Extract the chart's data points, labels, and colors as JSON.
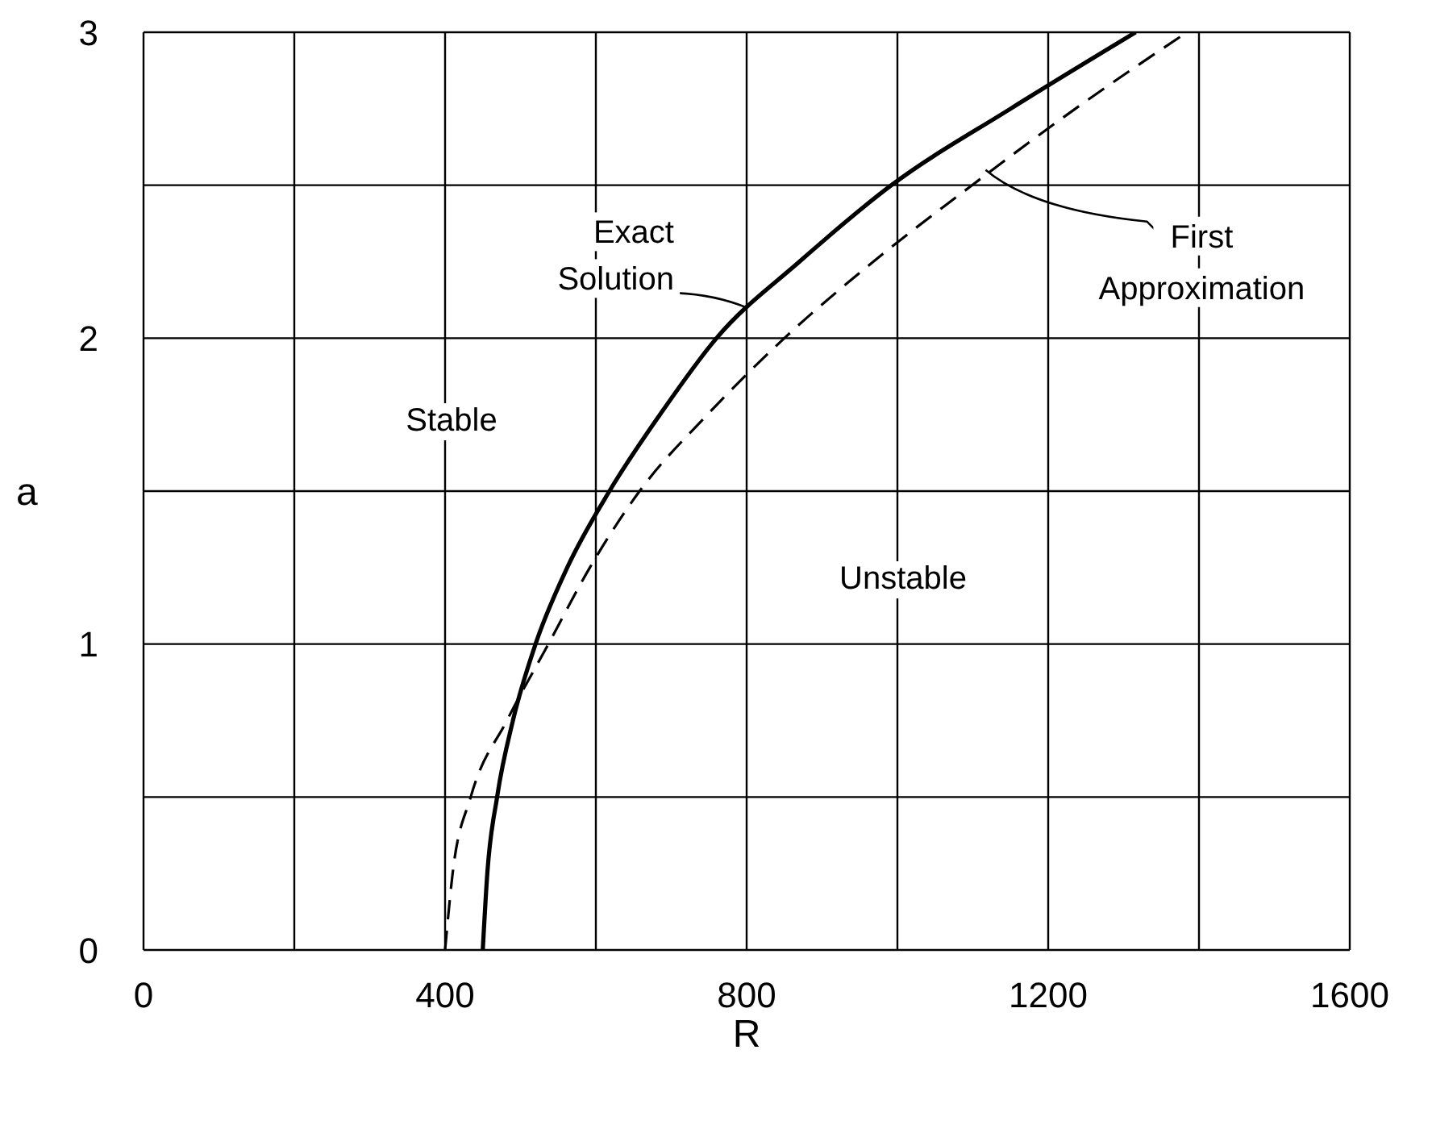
{
  "chart_data": {
    "type": "line",
    "xlabel": "R",
    "ylabel": "a",
    "xlim": [
      0,
      1600
    ],
    "ylim": [
      0,
      3
    ],
    "xticks": [
      0,
      {
        "value": 200,
        "label": null
      },
      400,
      {
        "value": 600,
        "label": null
      },
      800,
      {
        "value": 1000,
        "label": null
      },
      1200,
      {
        "value": 1400,
        "label": null
      },
      1600
    ],
    "yticks": [
      0,
      {
        "value": 0.5,
        "label": null
      },
      1,
      {
        "value": 1.5,
        "label": null
      },
      2,
      {
        "value": 2.5,
        "label": null
      },
      3
    ],
    "grid": true,
    "marker": "none",
    "series": [
      {
        "color": "#000000",
        "line_style": "solid",
        "x": [
          450,
          456,
          469,
          490,
          520,
          562,
          618,
          685,
          760,
          870,
          992,
          1150,
          1316
        ],
        "values": [
          0,
          0.25,
          0.5,
          0.75,
          1,
          1.25,
          1.5,
          1.75,
          2,
          2.25,
          2.5,
          2.75,
          3
        ]
      },
      {
        "color": "#000000",
        "line_style": "dashed",
        "x": [
          400,
          410,
          434,
          482,
          537,
          592,
          658,
          748,
          850,
          968,
          1099,
          1236,
          1384
        ],
        "values": [
          0,
          0.25,
          0.5,
          0.75,
          1,
          1.25,
          1.5,
          1.75,
          2,
          2.25,
          2.5,
          2.75,
          3
        ]
      }
    ],
    "annotations": [
      {
        "text": "Exact Solution",
        "x": 800,
        "y": 2.1
      },
      {
        "text": "First Approximation",
        "x": 1117,
        "y": 2.55
      },
      "Stable",
      "Unstable"
    ]
  }
}
